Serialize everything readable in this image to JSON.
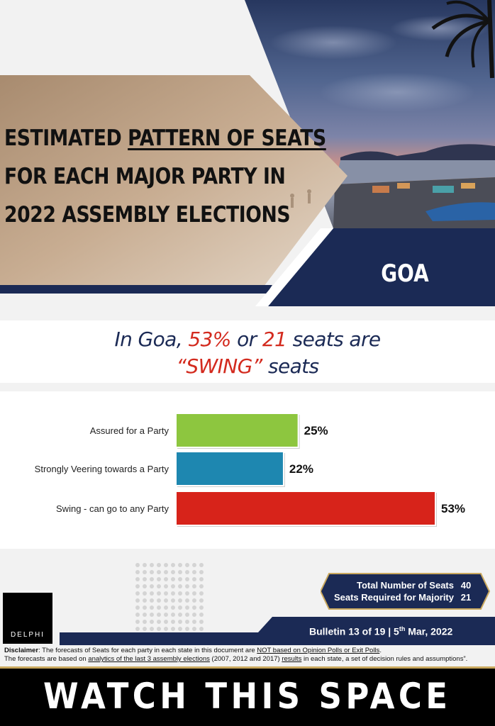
{
  "hero": {
    "title_line1_prefix": "ESTIMATED ",
    "title_line1_underlined": "PATTERN OF SEATS",
    "title_line2": "FOR EACH MAJOR PARTY IN",
    "title_line3": "2022 ASSEMBLY ELECTIONS",
    "state": "GOA"
  },
  "headline": {
    "part1": "In Goa, ",
    "pct": "53%",
    "part2": " or ",
    "seats": "21",
    "part3": " seats are",
    "swing": "“SWING”",
    "part4": " seats"
  },
  "chart_data": {
    "type": "bar",
    "orientation": "horizontal",
    "categories": [
      "Assured for a Party",
      "Strongly Veering towards a Party",
      "Swing - can go to any Party"
    ],
    "values": [
      25,
      22,
      53
    ],
    "value_labels": [
      "25%",
      "22%",
      "53%"
    ],
    "colors": [
      "#8dc63f",
      "#1e87b0",
      "#d7231a"
    ],
    "xlim": [
      0,
      53
    ]
  },
  "seats": {
    "total_label": "Total Number of Seats",
    "total_value": "40",
    "majority_label": "Seats Required for Majority",
    "majority_value": "21"
  },
  "logo": {
    "text": "DELPHI"
  },
  "bulletin": {
    "prefix": "Bulletin 13 of 19 | 5",
    "sup": "th",
    "suffix": " Mar, 2022"
  },
  "disclaimer": {
    "label": "Disclaimer",
    "l1_a": ": The forecasts of Seats for each party in each state in this document are ",
    "l1_u": "NOT based on Opinion Polls or Exit Polls",
    "l1_b": ".",
    "l2_a": "The forecasts are based on ",
    "l2_u1": "analytics of the last 3 assembly elections",
    "l2_b": " (2007, 2012 and 2017) ",
    "l2_u2": "results",
    "l2_c": " in each state, a set of decision rules and assumptions”."
  },
  "banner": {
    "text": "WATCH THIS SPACE"
  },
  "colors": {
    "navy": "#1b2a55",
    "red": "#d32a1e",
    "tan": "#b89a7c",
    "gold": "#c9a85e"
  }
}
